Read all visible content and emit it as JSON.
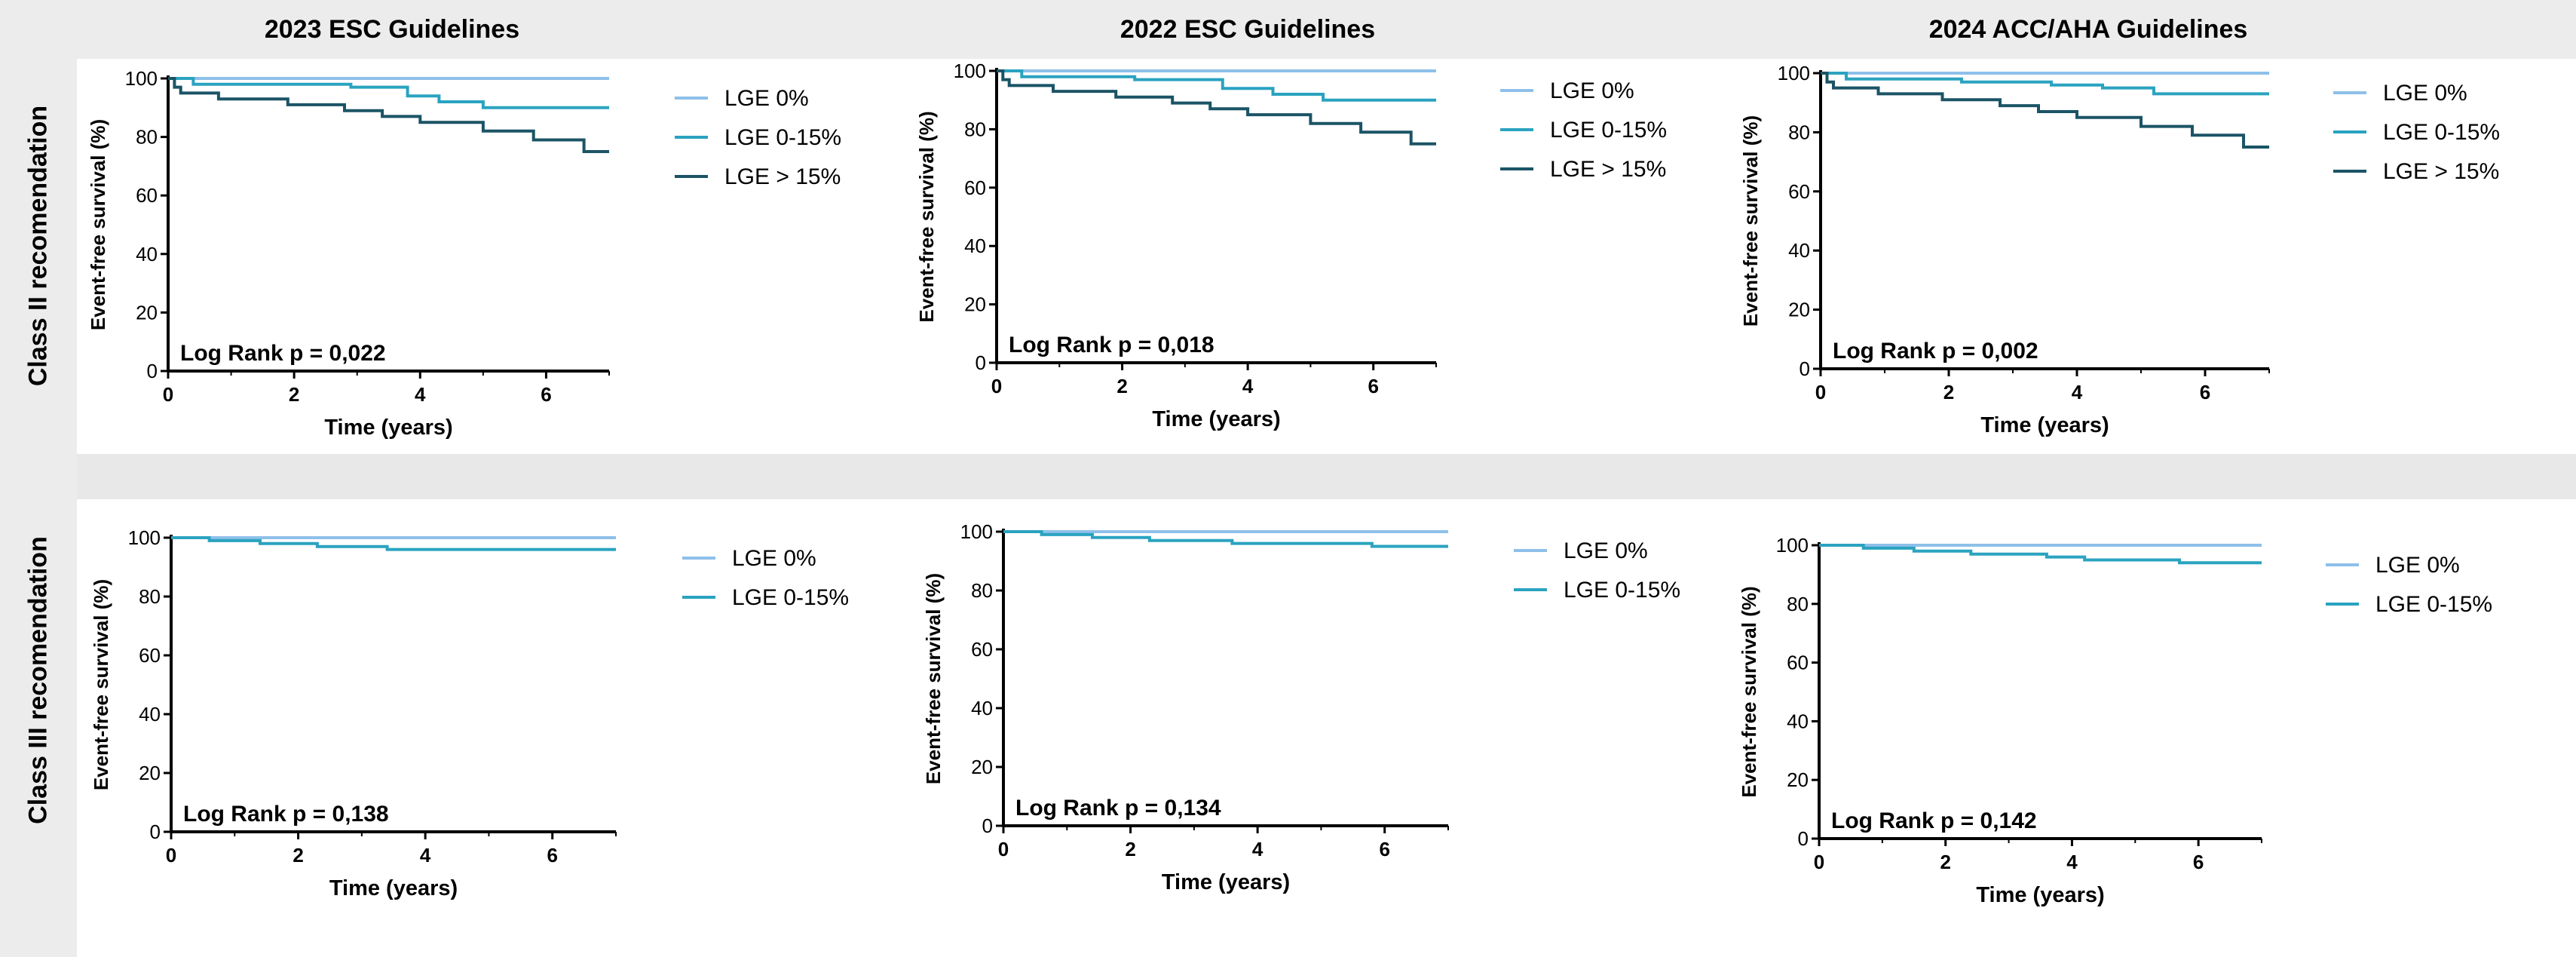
{
  "column_titles": [
    "2023 ESC Guidelines",
    "2022 ESC Guidelines",
    "2024 ACC/AHA Guidelines"
  ],
  "row_titles": [
    "Class II recomendation",
    "Class III recomendation"
  ],
  "colors": {
    "LGE 0%": "#8ec0ea",
    "LGE 0-15%": "#2aa3c0",
    "LGE > 15%": "#1b5466"
  },
  "chart_data": [
    {
      "type": "line",
      "step": true,
      "xlabel": "Time (years)",
      "ylabel": "Event-free survival (%)",
      "xlim": [
        0,
        7
      ],
      "ylim": [
        0,
        100
      ],
      "xticks": [
        0,
        2,
        4,
        6
      ],
      "yticks": [
        0,
        20,
        40,
        60,
        80,
        100
      ],
      "annotation": "Log Rank p = 0,022",
      "legend_position": "right",
      "series": [
        {
          "name": "LGE 0%",
          "x": [
            0,
            7
          ],
          "y": [
            100,
            100
          ]
        },
        {
          "name": "LGE 0-15%",
          "x": [
            0,
            0.4,
            2.9,
            3.8,
            4.3,
            5,
            7
          ],
          "y": [
            100,
            98,
            97,
            94,
            92,
            90,
            90
          ]
        },
        {
          "name": "LGE > 15%",
          "x": [
            0,
            0.1,
            0.2,
            0.8,
            1.9,
            2.8,
            3.4,
            4,
            5,
            5.8,
            6.6,
            7
          ],
          "y": [
            100,
            97,
            95,
            93,
            91,
            89,
            87,
            85,
            82,
            79,
            75,
            75
          ]
        }
      ]
    },
    {
      "type": "line",
      "step": true,
      "xlabel": "Time (years)",
      "ylabel": "Event-free survival (%)",
      "xlim": [
        0,
        7
      ],
      "ylim": [
        0,
        100
      ],
      "xticks": [
        0,
        2,
        4,
        6
      ],
      "yticks": [
        0,
        20,
        40,
        60,
        80,
        100
      ],
      "annotation": "Log Rank p = 0,018",
      "legend_position": "right",
      "series": [
        {
          "name": "LGE 0%",
          "x": [
            0,
            7
          ],
          "y": [
            100,
            100
          ]
        },
        {
          "name": "LGE 0-15%",
          "x": [
            0,
            0.4,
            2.2,
            3.6,
            4.4,
            5.2,
            7
          ],
          "y": [
            100,
            98,
            97,
            94,
            92,
            90,
            90
          ]
        },
        {
          "name": "LGE > 15%",
          "x": [
            0,
            0.1,
            0.2,
            0.9,
            1.9,
            2.8,
            3.4,
            4,
            5,
            5.8,
            6.6,
            7
          ],
          "y": [
            100,
            97,
            95,
            93,
            91,
            89,
            87,
            85,
            82,
            79,
            75,
            75
          ]
        }
      ]
    },
    {
      "type": "line",
      "step": true,
      "xlabel": "Time (years)",
      "ylabel": "Event-free survival (%)",
      "xlim": [
        0,
        7
      ],
      "ylim": [
        0,
        100
      ],
      "xticks": [
        0,
        2,
        4,
        6
      ],
      "yticks": [
        0,
        20,
        40,
        60,
        80,
        100
      ],
      "annotation": "Log Rank p = 0,002",
      "legend_position": "right",
      "series": [
        {
          "name": "LGE 0%",
          "x": [
            0,
            7
          ],
          "y": [
            100,
            100
          ]
        },
        {
          "name": "LGE 0-15%",
          "x": [
            0,
            0.4,
            2.2,
            3.6,
            4.4,
            5.2,
            7
          ],
          "y": [
            100,
            98,
            97,
            96,
            95,
            93,
            93
          ]
        },
        {
          "name": "LGE > 15%",
          "x": [
            0,
            0.1,
            0.2,
            0.9,
            1.9,
            2.8,
            3.4,
            4,
            5,
            5.8,
            6.6,
            7
          ],
          "y": [
            100,
            97,
            95,
            93,
            91,
            89,
            87,
            85,
            82,
            79,
            75,
            75
          ]
        }
      ]
    },
    {
      "type": "line",
      "step": true,
      "xlabel": "Time (years)",
      "ylabel": "Event-free survival (%)",
      "xlim": [
        0,
        7
      ],
      "ylim": [
        0,
        100
      ],
      "xticks": [
        0,
        2,
        4,
        6
      ],
      "yticks": [
        0,
        20,
        40,
        60,
        80,
        100
      ],
      "annotation": "Log Rank p = 0,138",
      "legend_position": "right",
      "series": [
        {
          "name": "LGE 0%",
          "x": [
            0,
            7
          ],
          "y": [
            100,
            100
          ]
        },
        {
          "name": "LGE 0-15%",
          "x": [
            0,
            0.6,
            1.4,
            2.3,
            3.4,
            7
          ],
          "y": [
            100,
            99,
            98,
            97,
            96,
            96
          ]
        }
      ]
    },
    {
      "type": "line",
      "step": true,
      "xlabel": "Time (years)",
      "ylabel": "Event-free survival (%)",
      "xlim": [
        0,
        7
      ],
      "ylim": [
        0,
        100
      ],
      "xticks": [
        0,
        2,
        4,
        6
      ],
      "yticks": [
        0,
        20,
        40,
        60,
        80,
        100
      ],
      "annotation": "Log Rank p = 0,134",
      "legend_position": "right",
      "series": [
        {
          "name": "LGE 0%",
          "x": [
            0,
            7
          ],
          "y": [
            100,
            100
          ]
        },
        {
          "name": "LGE 0-15%",
          "x": [
            0,
            0.6,
            1.4,
            2.3,
            3.6,
            5.8,
            7
          ],
          "y": [
            100,
            99,
            98,
            97,
            96,
            95,
            95
          ]
        }
      ]
    },
    {
      "type": "line",
      "step": true,
      "xlabel": "Time (years)",
      "ylabel": "Event-free survival (%)",
      "xlim": [
        0,
        7
      ],
      "ylim": [
        0,
        100
      ],
      "xticks": [
        0,
        2,
        4,
        6
      ],
      "yticks": [
        0,
        20,
        40,
        60,
        80,
        100
      ],
      "annotation": "Log Rank p = 0,142",
      "legend_position": "right",
      "series": [
        {
          "name": "LGE 0%",
          "x": [
            0,
            7
          ],
          "y": [
            100,
            100
          ]
        },
        {
          "name": "LGE 0-15%",
          "x": [
            0,
            0.7,
            1.5,
            2.4,
            3.6,
            4.2,
            5.7,
            7
          ],
          "y": [
            100,
            99,
            98,
            97,
            96,
            95,
            94,
            94
          ]
        }
      ]
    }
  ]
}
